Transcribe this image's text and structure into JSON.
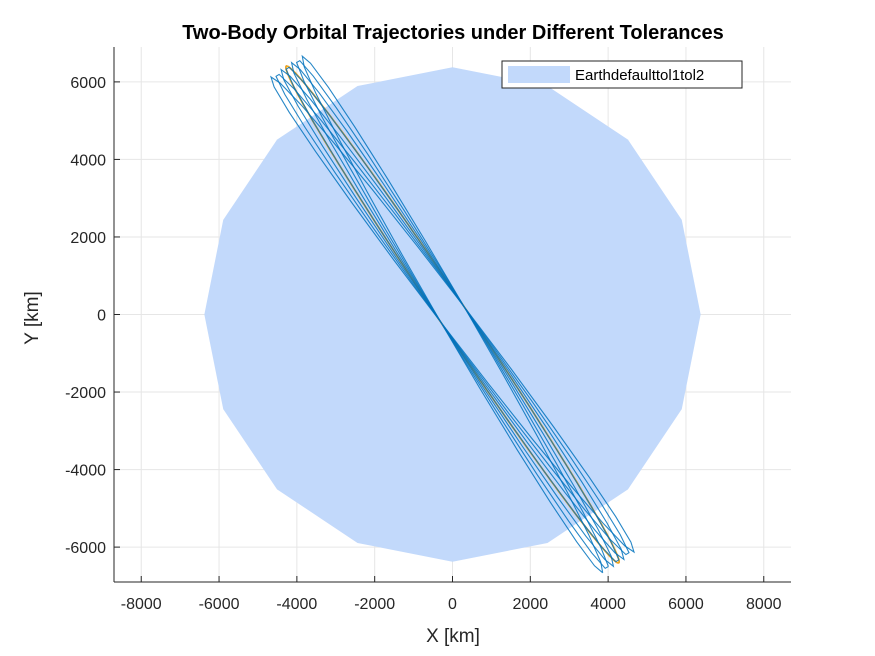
{
  "chart_data": {
    "type": "line",
    "title": "Two-Body Orbital Trajectories under Different Tolerances",
    "xlabel": "X [km]",
    "ylabel": "Y [km]",
    "xlim": [
      -8700,
      8700
    ],
    "ylim": [
      -6900,
      6900
    ],
    "xticks": [
      -8000,
      -6000,
      -4000,
      -2000,
      0,
      2000,
      4000,
      6000,
      8000
    ],
    "yticks": [
      -6000,
      -4000,
      -2000,
      0,
      2000,
      4000,
      6000
    ],
    "xtick_labels": [
      "-8000",
      "-6000",
      "-4000",
      "-2000",
      "0",
      "2000",
      "4000",
      "6000",
      "8000"
    ],
    "ytick_labels": [
      "-6000",
      "-4000",
      "-2000",
      "0",
      "2000",
      "4000",
      "6000"
    ],
    "grid": true,
    "legend": {
      "entries": [
        "Earthdefaulttol1tol2"
      ],
      "placement": "top-right"
    },
    "earth": {
      "radius_km": 6378,
      "sides": 16,
      "color": "#c2d9fb"
    },
    "orbit": {
      "semi_major_km": 7700,
      "semi_minor_km": 360,
      "center_km": [
        0,
        0
      ],
      "tilt_deg": -56.3
    },
    "series": [
      {
        "name": "default",
        "color": "#0072bd",
        "segments_per_orbit": 24,
        "orbits": 7,
        "drift_deg": 1.2
      },
      {
        "name": "tol1",
        "color": "#d95319",
        "segments_per_orbit": 360,
        "orbits": 1,
        "drift_deg": 0
      },
      {
        "name": "tol2",
        "color": "#edb120",
        "segments_per_orbit": 360,
        "orbits": 1,
        "drift_deg": 0
      }
    ]
  }
}
